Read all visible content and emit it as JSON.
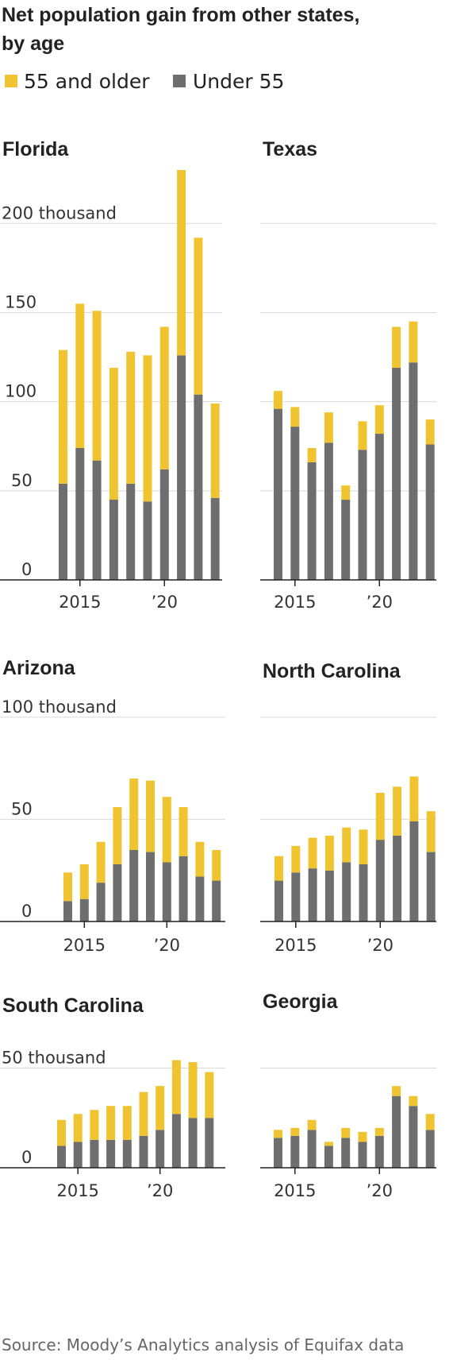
{
  "title_line1": "Net population gain from other states,",
  "title_line2": "by age",
  "legend": [
    {
      "label": "55 and older",
      "color": "#F0C431"
    },
    {
      "label": "Under 55",
      "color": "#6E6E6E"
    }
  ],
  "source": "Source: Moody’s Analytics analysis of Equifax data",
  "chart_data": [
    {
      "type": "bar",
      "stacked": true,
      "title": "Florida",
      "years": [
        2014,
        2015,
        2016,
        2017,
        2018,
        2019,
        2020,
        2021,
        2022,
        2023
      ],
      "x_tick_labels": [
        "2015",
        "’20"
      ],
      "ylim": [
        0,
        230
      ],
      "y_ticks": [
        0,
        50,
        100,
        150,
        200
      ],
      "y_tick_labels": [
        "0",
        "50",
        "100",
        "150",
        "200 thousand"
      ],
      "ylabel": "thousand",
      "series": [
        {
          "name": "Under 55",
          "values": [
            54,
            74,
            67,
            45,
            54,
            44,
            62,
            126,
            104,
            46
          ]
        },
        {
          "name": "55 and older",
          "values": [
            75,
            81,
            84,
            74,
            74,
            82,
            80,
            104,
            88,
            53
          ]
        }
      ]
    },
    {
      "type": "bar",
      "stacked": true,
      "title": "Texas",
      "years": [
        2014,
        2015,
        2016,
        2017,
        2018,
        2019,
        2020,
        2021,
        2022,
        2023
      ],
      "x_tick_labels": [
        "2015",
        "’20"
      ],
      "ylim": [
        0,
        230
      ],
      "y_ticks": [
        0,
        50,
        100,
        150,
        200
      ],
      "y_tick_labels": [
        "",
        "",
        "",
        "",
        ""
      ],
      "ylabel": "thousand",
      "series": [
        {
          "name": "Under 55",
          "values": [
            96,
            86,
            66,
            77,
            45,
            73,
            82,
            119,
            122,
            76
          ]
        },
        {
          "name": "55 and older",
          "values": [
            10,
            11,
            8,
            17,
            8,
            16,
            16,
            23,
            23,
            14
          ]
        }
      ]
    },
    {
      "type": "bar",
      "stacked": true,
      "title": "Arizona",
      "years": [
        2014,
        2015,
        2016,
        2017,
        2018,
        2019,
        2020,
        2021,
        2022,
        2023
      ],
      "x_tick_labels": [
        "2015",
        "’20"
      ],
      "ylim": [
        0,
        105
      ],
      "y_ticks": [
        0,
        50,
        100
      ],
      "y_tick_labels": [
        "0",
        "50",
        "100 thousand"
      ],
      "ylabel": "thousand",
      "series": [
        {
          "name": "Under 55",
          "values": [
            10,
            11,
            19,
            28,
            35,
            34,
            29,
            32,
            22,
            20
          ]
        },
        {
          "name": "55 and older",
          "values": [
            14,
            17,
            20,
            28,
            35,
            35,
            32,
            24,
            17,
            15
          ]
        }
      ]
    },
    {
      "type": "bar",
      "stacked": true,
      "title": "North Carolina",
      "years": [
        2014,
        2015,
        2016,
        2017,
        2018,
        2019,
        2020,
        2021,
        2022,
        2023
      ],
      "x_tick_labels": [
        "2015",
        "’20"
      ],
      "ylim": [
        0,
        105
      ],
      "y_ticks": [
        0,
        50,
        100
      ],
      "y_tick_labels": [
        "",
        "",
        ""
      ],
      "ylabel": "thousand",
      "series": [
        {
          "name": "Under 55",
          "values": [
            20,
            24,
            26,
            25,
            29,
            28,
            40,
            42,
            49,
            34
          ]
        },
        {
          "name": "55 and older",
          "values": [
            12,
            13,
            15,
            17,
            17,
            17,
            23,
            24,
            22,
            20
          ]
        }
      ]
    },
    {
      "type": "bar",
      "stacked": true,
      "title": "South Carolina",
      "years": [
        2014,
        2015,
        2016,
        2017,
        2018,
        2019,
        2020,
        2021,
        2022,
        2023
      ],
      "x_tick_labels": [
        "2015",
        "’20"
      ],
      "ylim": [
        0,
        55
      ],
      "y_ticks": [
        0,
        50
      ],
      "y_tick_labels": [
        "0",
        "50 thousand"
      ],
      "ylabel": "thousand",
      "series": [
        {
          "name": "Under 55",
          "values": [
            11,
            13,
            14,
            14,
            14,
            16,
            19,
            27,
            25,
            25
          ]
        },
        {
          "name": "55 and older",
          "values": [
            13,
            14,
            15,
            17,
            17,
            22,
            22,
            27,
            28,
            23
          ]
        }
      ]
    },
    {
      "type": "bar",
      "stacked": true,
      "title": "Georgia",
      "years": [
        2014,
        2015,
        2016,
        2017,
        2018,
        2019,
        2020,
        2021,
        2022,
        2023
      ],
      "x_tick_labels": [
        "2015",
        "’20"
      ],
      "ylim": [
        0,
        55
      ],
      "y_ticks": [
        0,
        50
      ],
      "y_tick_labels": [
        "",
        ""
      ],
      "ylabel": "thousand",
      "series": [
        {
          "name": "Under 55",
          "values": [
            15,
            16,
            19,
            11,
            15,
            13,
            16,
            36,
            31,
            19
          ]
        },
        {
          "name": "55 and older",
          "values": [
            4,
            4,
            5,
            2,
            5,
            5,
            4,
            5,
            5,
            8
          ]
        }
      ]
    }
  ]
}
